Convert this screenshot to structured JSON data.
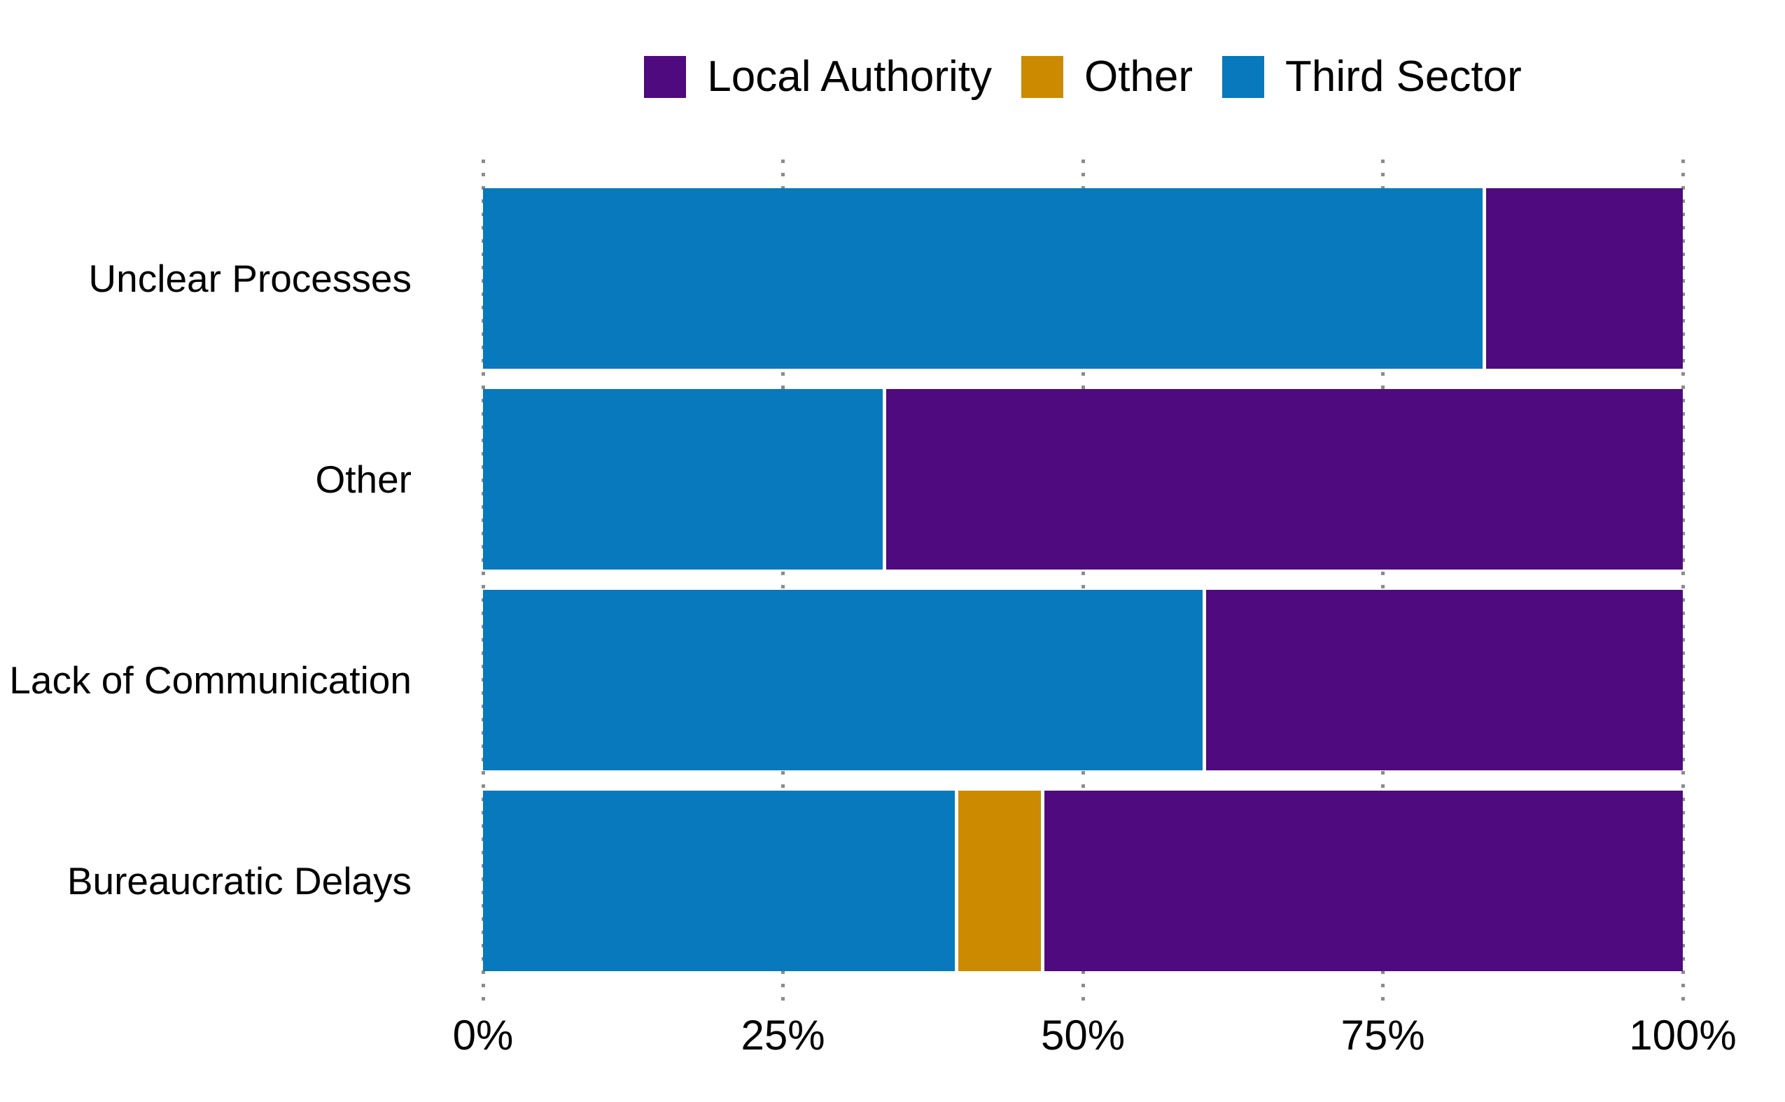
{
  "legend": {
    "items": [
      {
        "label": "Local Authority",
        "color": "#4E0A7E"
      },
      {
        "label": "Other",
        "color": "#CC8A00"
      },
      {
        "label": "Third Sector",
        "color": "#0779BC"
      }
    ]
  },
  "series_colors": {
    "Local Authority": "#4E0A7E",
    "Other": "#CC8A00",
    "Third Sector": "#0779BC"
  },
  "rows": [
    {
      "label": "Unclear Processes",
      "segments": [
        {
          "series": "Third Sector",
          "pct": 83.3
        },
        {
          "series": "Local Authority",
          "pct": 16.7
        }
      ]
    },
    {
      "label": "Other",
      "segments": [
        {
          "series": "Third Sector",
          "pct": 33.3
        },
        {
          "series": "Local Authority",
          "pct": 66.7
        }
      ]
    },
    {
      "label": "Lack of Communication",
      "segments": [
        {
          "series": "Third Sector",
          "pct": 60.0
        },
        {
          "series": "Local Authority",
          "pct": 40.0
        }
      ]
    },
    {
      "label": "Bureaucratic Delays",
      "segments": [
        {
          "series": "Third Sector",
          "pct": 39.3
        },
        {
          "series": "Other",
          "pct": 7.2
        },
        {
          "series": "Local Authority",
          "pct": 53.5
        }
      ]
    }
  ],
  "x_axis": {
    "ticks": [
      {
        "label": "0%",
        "pct": 0
      },
      {
        "label": "25%",
        "pct": 25
      },
      {
        "label": "50%",
        "pct": 50
      },
      {
        "label": "75%",
        "pct": 75
      },
      {
        "label": "100%",
        "pct": 100
      }
    ],
    "gridline_color": "#8c8c8c"
  },
  "chart_data": {
    "type": "bar",
    "orientation": "horizontal",
    "stacked": true,
    "title": "",
    "xlabel": "",
    "ylabel": "",
    "xlim": [
      0,
      100
    ],
    "x_tick_labels": [
      "0%",
      "25%",
      "50%",
      "75%",
      "100%"
    ],
    "grid": "dotted vertical gridlines at each 25% tick",
    "legend_position": "top-center",
    "categories": [
      "Unclear Processes",
      "Other",
      "Lack of Communication",
      "Bureaucratic Delays"
    ],
    "stack_order_left_to_right": [
      "Third Sector",
      "Other",
      "Local Authority"
    ],
    "series": [
      {
        "name": "Local Authority",
        "color": "#4E0A7E",
        "values": [
          16.7,
          66.7,
          40.0,
          53.5
        ]
      },
      {
        "name": "Other",
        "color": "#CC8A00",
        "values": [
          0.0,
          0.0,
          0.0,
          7.2
        ]
      },
      {
        "name": "Third Sector",
        "color": "#0779BC",
        "values": [
          83.3,
          33.3,
          60.0,
          39.3
        ]
      }
    ],
    "units": "percent of responses"
  }
}
